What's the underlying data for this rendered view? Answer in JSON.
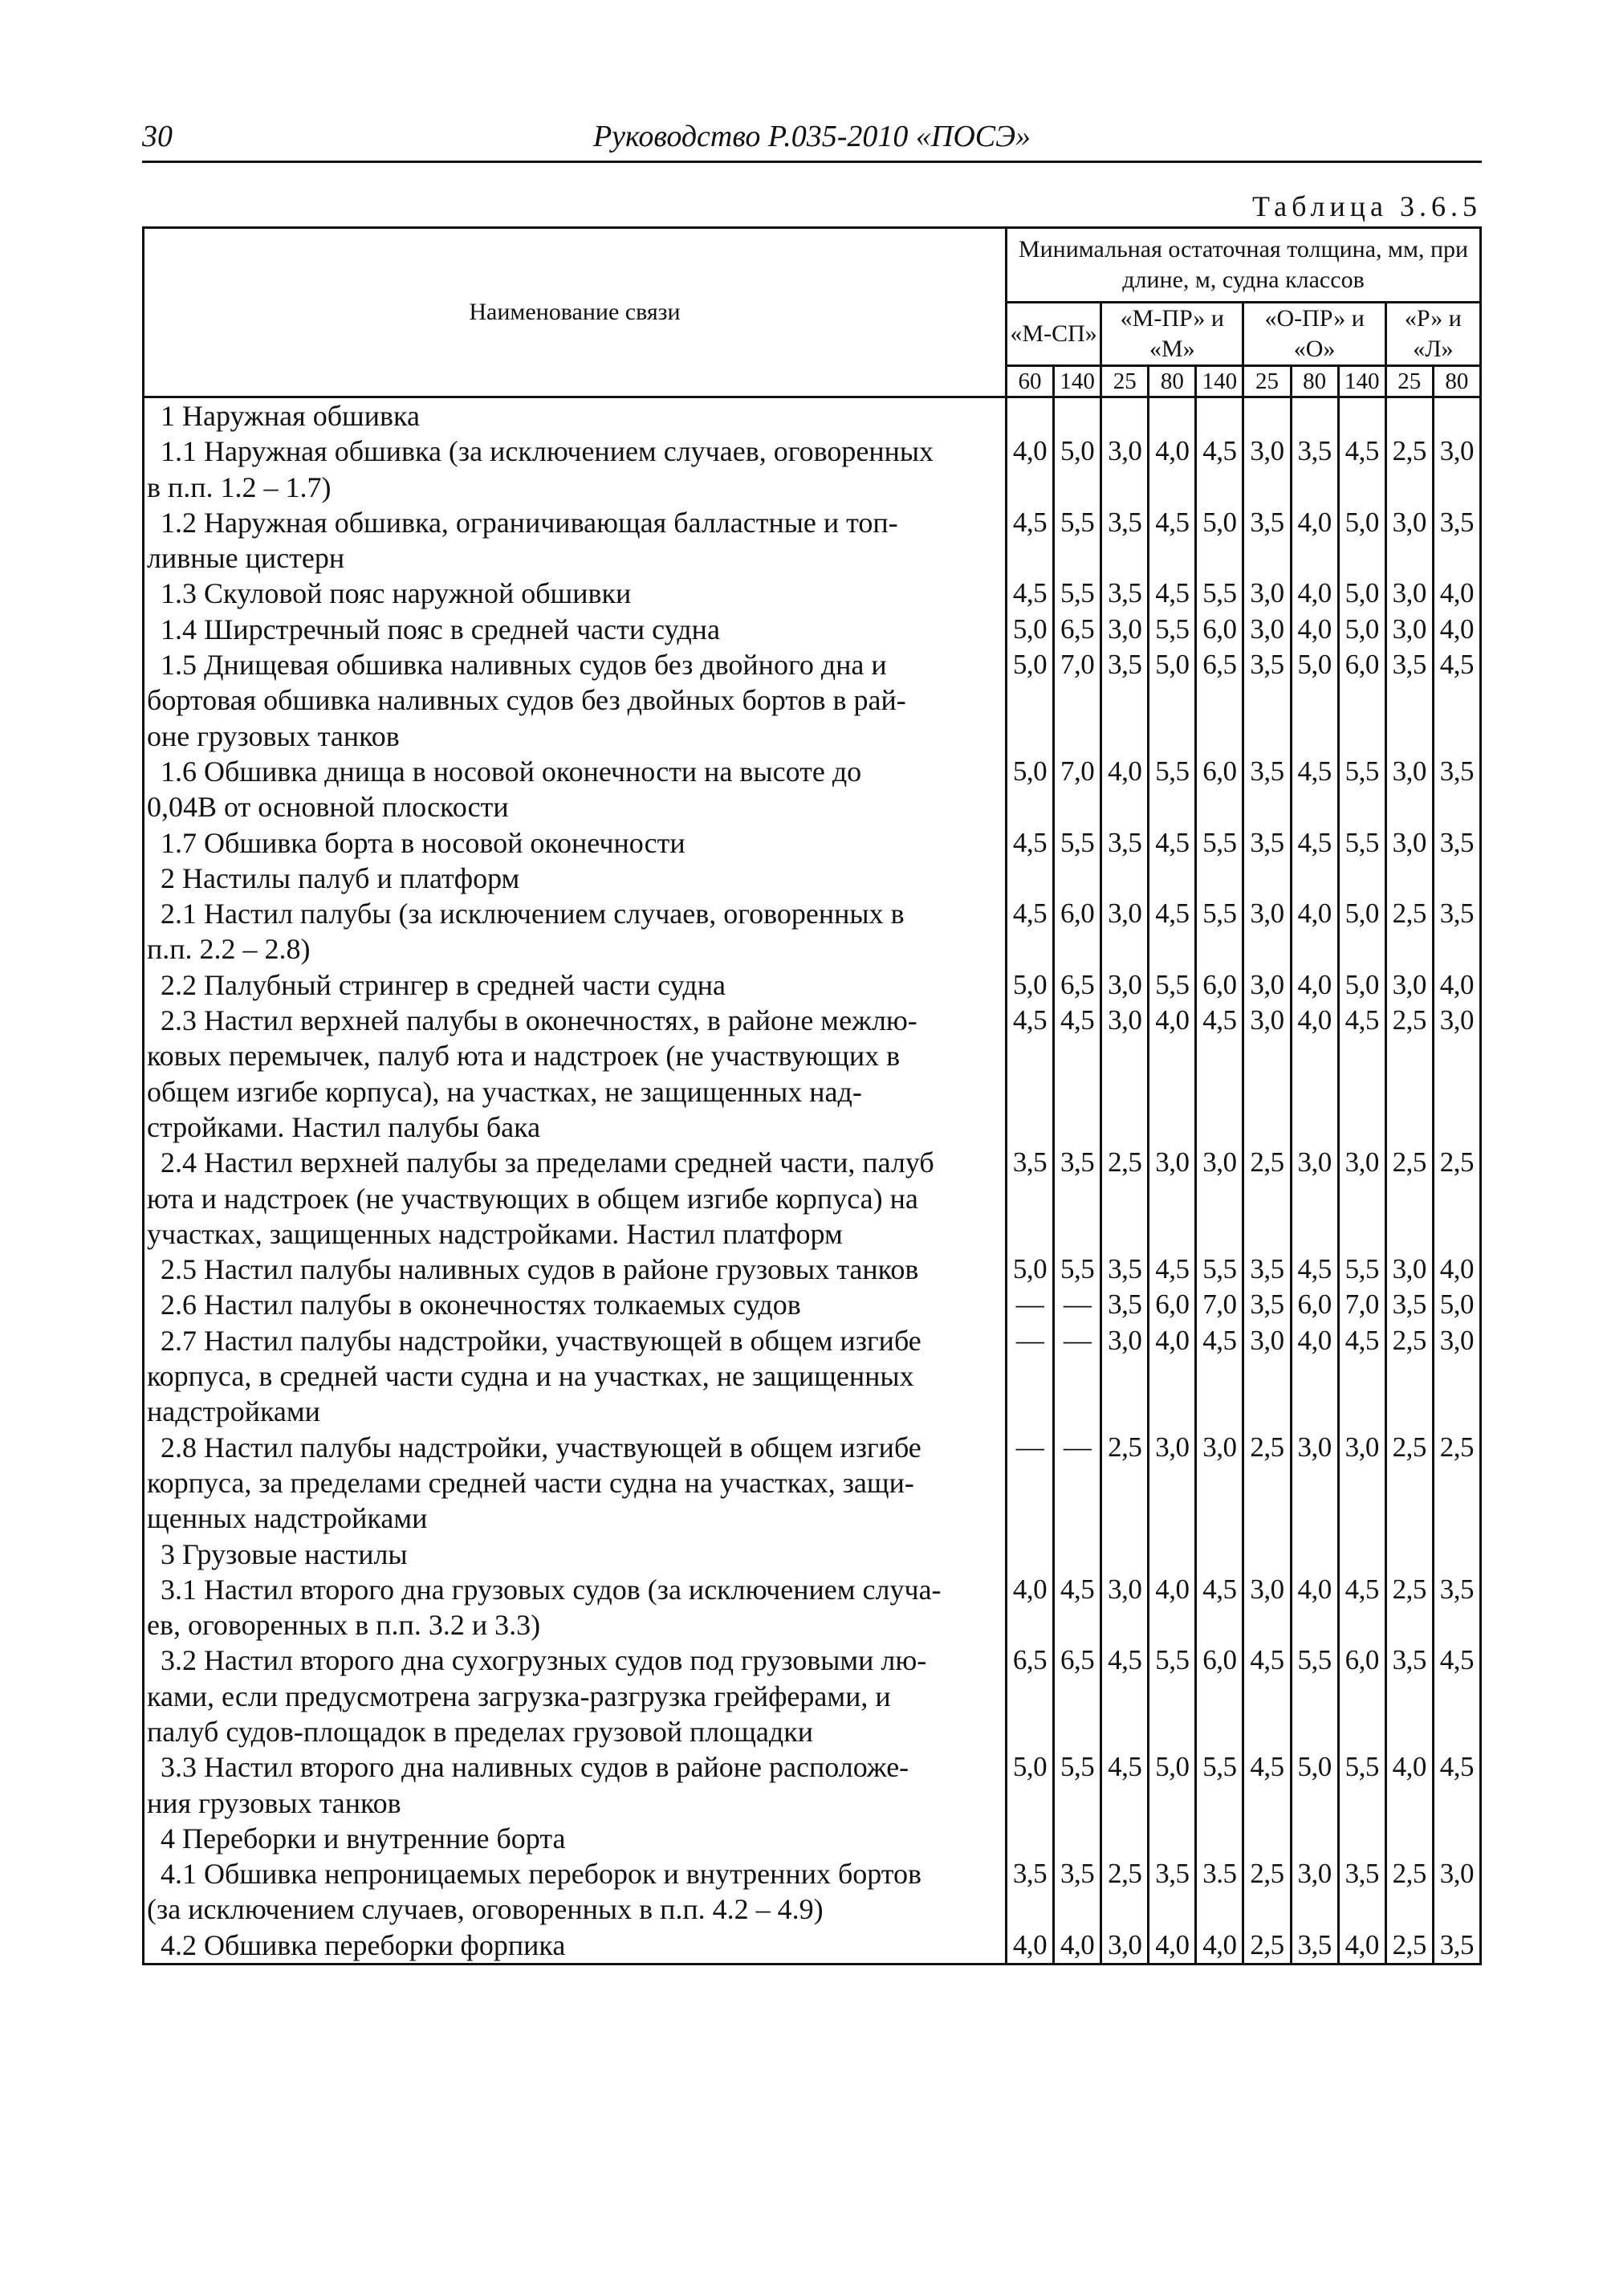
{
  "page_header": {
    "page_number": "30",
    "title": "Руководство Р.035-2010 «ПОСЭ»"
  },
  "table_caption": "Таблица 3.6.5",
  "table": {
    "name_header": "Наименование связи",
    "group_header": "Минимальная остаточная толщина, мм, при длине, м, судна классов",
    "classes": [
      "«М-СП»",
      "«М-ПР» и «М»",
      "«О-ПР» и «О»",
      "«Р» и «Л»"
    ],
    "lengths": [
      "60",
      "140",
      "25",
      "80",
      "140",
      "25",
      "80",
      "140",
      "25",
      "80"
    ],
    "rows": [
      {
        "name": "1 Наружная обшивка",
        "values": []
      },
      {
        "name": "1.1 Наружная обшивка (за исключением случаев, оговоренных\nв п.п. 1.2 – 1.7)",
        "values": [
          "4,0",
          "5,0",
          "3,0",
          "4,0",
          "4,5",
          "3,0",
          "3,5",
          "4,5",
          "2,5",
          "3,0"
        ]
      },
      {
        "name": "1.2 Наружная обшивка, ограничивающая балластные и топ-\nливные цистерн",
        "values": [
          "4,5",
          "5,5",
          "3,5",
          "4,5",
          "5,0",
          "3,5",
          "4,0",
          "5,0",
          "3,0",
          "3,5"
        ]
      },
      {
        "name": "1.3 Скуловой пояс наружной обшивки",
        "values": [
          "4,5",
          "5,5",
          "3,5",
          "4,5",
          "5,5",
          "3,0",
          "4,0",
          "5,0",
          "3,0",
          "4,0"
        ]
      },
      {
        "name": "1.4 Ширстречный пояс в средней части судна",
        "values": [
          "5,0",
          "6,5",
          "3,0",
          "5,5",
          "6,0",
          "3,0",
          "4,0",
          "5,0",
          "3,0",
          "4,0"
        ]
      },
      {
        "name": "1.5 Днищевая обшивка наливных судов без двойного дна и\nбортовая обшивка наливных судов без двойных бортов в рай-\nоне грузовых танков",
        "values": [
          "5,0",
          "7,0",
          "3,5",
          "5,0",
          "6,5",
          "3,5",
          "5,0",
          "6,0",
          "3,5",
          "4,5"
        ]
      },
      {
        "name": "1.6 Обшивка днища в носовой оконечности на высоте до\n0,04B от основной плоскости",
        "values": [
          "5,0",
          "7,0",
          "4,0",
          "5,5",
          "6,0",
          "3,5",
          "4,5",
          "5,5",
          "3,0",
          "3,5"
        ]
      },
      {
        "name": "1.7 Обшивка борта в носовой оконечности",
        "values": [
          "4,5",
          "5,5",
          "3,5",
          "4,5",
          "5,5",
          "3,5",
          "4,5",
          "5,5",
          "3,0",
          "3,5"
        ]
      },
      {
        "name": "2 Настилы палуб и платформ",
        "values": []
      },
      {
        "name": "2.1 Настил палубы (за исключением случаев, оговоренных в\nп.п. 2.2 – 2.8)",
        "values": [
          "4,5",
          "6,0",
          "3,0",
          "4,5",
          "5,5",
          "3,0",
          "4,0",
          "5,0",
          "2,5",
          "3,5"
        ]
      },
      {
        "name": "2.2 Палубный стрингер в средней части судна",
        "values": [
          "5,0",
          "6,5",
          "3,0",
          "5,5",
          "6,0",
          "3,0",
          "4,0",
          "5,0",
          "3,0",
          "4,0"
        ]
      },
      {
        "name": "2.3 Настил верхней палубы в оконечностях, в районе межлю-\nковых перемычек, палуб юта и надстроек (не участвующих в\nобщем изгибе корпуса), на участках, не защищенных над-\nстройками. Настил палубы бака",
        "values": [
          "4,5",
          "4,5",
          "3,0",
          "4,0",
          "4,5",
          "3,0",
          "4,0",
          "4,5",
          "2,5",
          "3,0"
        ]
      },
      {
        "name": "2.4 Настил верхней палубы за пределами средней части, палуб\nюта и надстроек (не участвующих в общем изгибе корпуса) на\nучастках, защищенных надстройками. Настил платформ",
        "values": [
          "3,5",
          "3,5",
          "2,5",
          "3,0",
          "3,0",
          "2,5",
          "3,0",
          "3,0",
          "2,5",
          "2,5"
        ]
      },
      {
        "name": "2.5 Настил палубы наливных судов в районе грузовых танков",
        "values": [
          "5,0",
          "5,5",
          "3,5",
          "4,5",
          "5,5",
          "3,5",
          "4,5",
          "5,5",
          "3,0",
          "4,0"
        ]
      },
      {
        "name": "2.6 Настил палубы в оконечностях толкаемых судов",
        "values": [
          "—",
          "—",
          "3,5",
          "6,0",
          "7,0",
          "3,5",
          "6,0",
          "7,0",
          "3,5",
          "5,0"
        ]
      },
      {
        "name": "2.7 Настил палубы надстройки, участвующей в общем изгибе\nкорпуса, в средней части судна и на участках, не защищенных\nнадстройками",
        "values": [
          "—",
          "—",
          "3,0",
          "4,0",
          "4,5",
          "3,0",
          "4,0",
          "4,5",
          "2,5",
          "3,0"
        ]
      },
      {
        "name": "2.8 Настил палубы надстройки, участвующей в общем изгибе\nкорпуса, за пределами средней части судна на участках, защи-\nщенных надстройками",
        "values": [
          "—",
          "—",
          "2,5",
          "3,0",
          "3,0",
          "2,5",
          "3,0",
          "3,0",
          "2,5",
          "2,5"
        ]
      },
      {
        "name": "3 Грузовые настилы",
        "values": []
      },
      {
        "name": "3.1 Настил второго дна грузовых судов (за исключением случа-\nев, оговоренных в п.п. 3.2 и 3.3)",
        "values": [
          "4,0",
          "4,5",
          "3,0",
          "4,0",
          "4,5",
          "3,0",
          "4,0",
          "4,5",
          "2,5",
          "3,5"
        ]
      },
      {
        "name": "3.2 Настил второго дна сухогрузных судов под грузовыми лю-\nками, если предусмотрена загрузка-разгрузка грейферами, и\nпалуб судов-площадок в пределах грузовой площадки",
        "values": [
          "6,5",
          "6,5",
          "4,5",
          "5,5",
          "6,0",
          "4,5",
          "5,5",
          "6,0",
          "3,5",
          "4,5"
        ]
      },
      {
        "name": "3.3 Настил второго дна наливных судов в районе расположе-\nния грузовых танков",
        "values": [
          "5,0",
          "5,5",
          "4,5",
          "5,0",
          "5,5",
          "4,5",
          "5,0",
          "5,5",
          "4,0",
          "4,5"
        ]
      },
      {
        "name": "4 Переборки и внутренние борта",
        "values": []
      },
      {
        "name": "4.1 Обшивка непроницаемых переборок и внутренних бортов\n(за исключением случаев, оговоренных в п.п. 4.2 – 4.9)",
        "values": [
          "3,5",
          "3,5",
          "2,5",
          "3,5",
          "3.5",
          "2,5",
          "3,0",
          "3,5",
          "2,5",
          "3,0"
        ]
      },
      {
        "name": "4.2 Обшивка переборки форпика",
        "values": [
          "4,0",
          "4,0",
          "3,0",
          "4,0",
          "4,0",
          "2,5",
          "3,5",
          "4,0",
          "2,5",
          "3,5"
        ]
      }
    ]
  }
}
